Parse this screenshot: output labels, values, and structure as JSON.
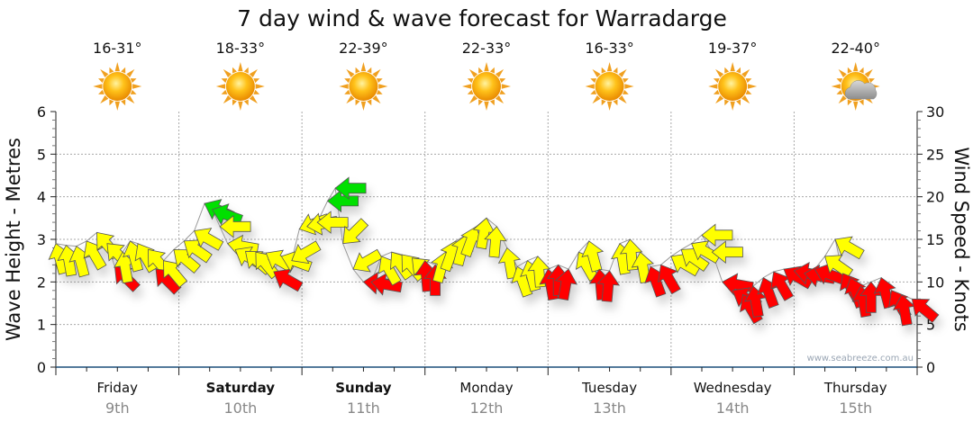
{
  "chart_data": {
    "type": "scatter",
    "title": "7 day wind & wave forecast for Warradarge",
    "ylabel_left": "Wave Height - Metres",
    "ylabel_right": "Wind Speed - Knots",
    "ylim_left": [
      0,
      6
    ],
    "ylim_right": [
      0,
      30
    ],
    "yticks_left": [
      "0",
      "1",
      "2",
      "3",
      "4",
      "5",
      "6"
    ],
    "yticks_right": [
      "0",
      "5",
      "10",
      "15",
      "20",
      "25",
      "30"
    ],
    "xlim_hours": [
      0,
      168
    ],
    "grid": true,
    "watermark": "www.seabreeze.com.au",
    "days": [
      {
        "day": "Friday",
        "date": "9th",
        "temp": "16-31°",
        "icon": "sun-icon",
        "bold": false
      },
      {
        "day": "Saturday",
        "date": "10th",
        "temp": "18-33°",
        "icon": "sun-icon",
        "bold": true
      },
      {
        "day": "Sunday",
        "date": "11th",
        "temp": "22-39°",
        "icon": "sun-icon",
        "bold": true
      },
      {
        "day": "Monday",
        "date": "12th",
        "temp": "22-33°",
        "icon": "sun-icon",
        "bold": false
      },
      {
        "day": "Tuesday",
        "date": "13th",
        "temp": "16-33°",
        "icon": "sun-icon",
        "bold": false
      },
      {
        "day": "Wednesday",
        "date": "14th",
        "temp": "19-37°",
        "icon": "sun-icon",
        "bold": false
      },
      {
        "day": "Thursday",
        "date": "15th",
        "temp": "22-40°",
        "icon": "cloud-sun-icon",
        "bold": false
      }
    ],
    "wind_colors": {
      "r": "#ff0000",
      "y": "#ffff00",
      "g": "#00e000"
    },
    "wind_series_fields": [
      "hour",
      "knots",
      "bearing_deg",
      "color"
    ],
    "wind": [
      [
        0,
        14.5,
        345,
        "y"
      ],
      [
        2,
        14.3,
        350,
        "y"
      ],
      [
        4,
        14.2,
        345,
        "y"
      ],
      [
        6,
        14.8,
        330,
        "y"
      ],
      [
        8,
        15.8,
        320,
        "y"
      ],
      [
        10,
        14.5,
        315,
        "y"
      ],
      [
        11.5,
        11.8,
        315,
        "r"
      ],
      [
        13,
        13.5,
        350,
        "y"
      ],
      [
        14.5,
        14.8,
        345,
        "y"
      ],
      [
        16,
        14.5,
        330,
        "y"
      ],
      [
        18,
        13.8,
        320,
        "y"
      ],
      [
        19.5,
        11.5,
        315,
        "r"
      ],
      [
        21,
        12.5,
        320,
        "y"
      ],
      [
        23,
        13.8,
        310,
        "y"
      ],
      [
        25,
        14.8,
        305,
        "y"
      ],
      [
        27,
        16,
        300,
        "y"
      ],
      [
        29,
        19.2,
        295,
        "g"
      ],
      [
        30.5,
        18.5,
        290,
        "g"
      ],
      [
        32,
        16.5,
        270,
        "y"
      ],
      [
        33.5,
        14.5,
        280,
        "y"
      ],
      [
        35,
        13.8,
        300,
        "y"
      ],
      [
        37,
        13.6,
        310,
        "y"
      ],
      [
        39,
        13.5,
        320,
        "y"
      ],
      [
        41,
        13.4,
        300,
        "y"
      ],
      [
        42.5,
        11.2,
        300,
        "r"
      ],
      [
        44,
        13,
        290,
        "y"
      ],
      [
        46,
        12.5,
        240,
        "y"
      ],
      [
        47.5,
        16.2,
        250,
        "y"
      ],
      [
        49,
        16.5,
        260,
        "y"
      ],
      [
        51,
        17,
        270,
        "y"
      ],
      [
        53,
        19.5,
        270,
        "g"
      ],
      [
        54.5,
        21,
        270,
        "g"
      ],
      [
        56,
        14.5,
        225,
        "y"
      ],
      [
        58,
        11.5,
        240,
        "y"
      ],
      [
        60,
        10,
        275,
        "r"
      ],
      [
        61.5,
        10,
        280,
        "r"
      ],
      [
        63.5,
        13,
        330,
        "y"
      ],
      [
        65.5,
        13.5,
        325,
        "y"
      ],
      [
        67.5,
        13.2,
        320,
        "y"
      ],
      [
        69.5,
        12.8,
        315,
        "y"
      ],
      [
        72,
        12.5,
        355,
        "r"
      ],
      [
        74,
        12,
        0,
        "r"
      ],
      [
        76,
        13.5,
        15,
        "y"
      ],
      [
        78,
        14.8,
        20,
        "y"
      ],
      [
        80,
        15.5,
        15,
        "y"
      ],
      [
        82,
        16.5,
        20,
        "y"
      ],
      [
        84,
        17.5,
        10,
        "y"
      ],
      [
        86,
        16.5,
        5,
        "y"
      ],
      [
        88,
        14,
        350,
        "y"
      ],
      [
        90,
        11.8,
        340,
        "y"
      ],
      [
        92,
        12.5,
        345,
        "y"
      ],
      [
        94,
        13,
        355,
        "y"
      ],
      [
        96,
        11.5,
        350,
        "r"
      ],
      [
        98,
        12,
        0,
        "r"
      ],
      [
        100,
        11.5,
        10,
        "r"
      ],
      [
        102,
        13.5,
        330,
        "y"
      ],
      [
        104,
        14.8,
        345,
        "y"
      ],
      [
        106,
        11.5,
        355,
        "r"
      ],
      [
        108,
        11.3,
        5,
        "r"
      ],
      [
        110,
        14.5,
        350,
        "y"
      ],
      [
        112,
        15,
        355,
        "y"
      ],
      [
        114,
        13.5,
        350,
        "y"
      ],
      [
        116,
        11.8,
        340,
        "r"
      ],
      [
        118,
        12,
        330,
        "r"
      ],
      [
        120,
        13,
        300,
        "y"
      ],
      [
        122,
        13.8,
        305,
        "y"
      ],
      [
        124,
        14.5,
        300,
        "y"
      ],
      [
        126,
        15.5,
        270,
        "y"
      ],
      [
        128,
        13.5,
        270,
        "y"
      ],
      [
        130,
        10,
        280,
        "r"
      ],
      [
        132,
        9,
        300,
        "r"
      ],
      [
        134,
        8.5,
        330,
        "r"
      ],
      [
        136,
        9.5,
        350,
        "r"
      ],
      [
        138,
        10.5,
        340,
        "r"
      ],
      [
        140,
        11.2,
        330,
        "r"
      ],
      [
        142,
        11.5,
        300,
        "r"
      ],
      [
        144,
        11.3,
        280,
        "r"
      ],
      [
        146,
        11,
        280,
        "r"
      ],
      [
        148,
        11.5,
        290,
        "r"
      ],
      [
        150,
        13,
        305,
        "y"
      ],
      [
        152,
        15,
        300,
        "y"
      ],
      [
        153.5,
        11,
        330,
        "r"
      ],
      [
        155,
        10.5,
        340,
        "r"
      ],
      [
        157,
        9.5,
        350,
        "r"
      ],
      [
        159,
        10,
        0,
        "r"
      ],
      [
        161,
        10.5,
        345,
        "r"
      ],
      [
        163,
        9,
        330,
        "r"
      ],
      [
        165,
        8.5,
        350,
        "r"
      ],
      [
        167,
        8,
        310,
        "r"
      ]
    ]
  }
}
